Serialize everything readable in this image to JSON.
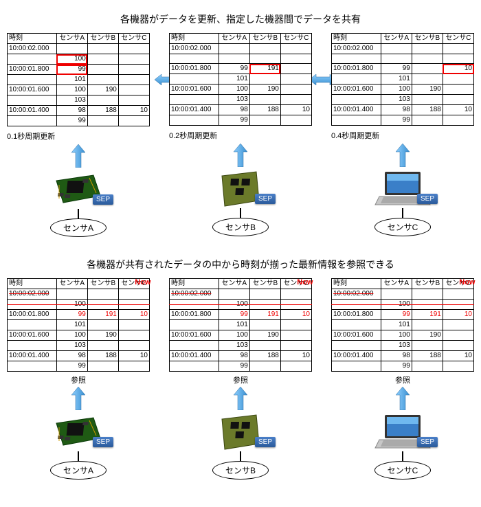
{
  "section1": {
    "title": "各機器がデータを更新、指定した機器間でデータを共有",
    "headers": {
      "time": "時刻",
      "a": "センサA",
      "b": "センサB",
      "c": "センサC"
    },
    "units": [
      {
        "updateCaption": "0.1秒周期更新",
        "highlight": "a",
        "rows": [
          {
            "t": "10:00:02.000",
            "a": "",
            "b": "",
            "c": ""
          },
          {
            "t": "",
            "a": "100",
            "b": "",
            "c": ""
          },
          {
            "t": "10:00:01.800",
            "a": "99",
            "b": "",
            "c": ""
          },
          {
            "t": "",
            "a": "101",
            "b": "",
            "c": ""
          },
          {
            "t": "10:00:01.600",
            "a": "100",
            "b": "190",
            "c": ""
          },
          {
            "t": "",
            "a": "103",
            "b": "",
            "c": ""
          },
          {
            "t": "10:00:01.400",
            "a": "98",
            "b": "188",
            "c": "10"
          },
          {
            "t": "",
            "a": "99",
            "b": "",
            "c": ""
          }
        ],
        "device": "board",
        "sensorLabel": "センサA"
      },
      {
        "updateCaption": "0.2秒周期更新",
        "highlight": "b",
        "rows": [
          {
            "t": "10:00:02.000",
            "a": "",
            "b": "",
            "c": ""
          },
          {
            "t": "",
            "a": "",
            "b": "",
            "c": ""
          },
          {
            "t": "10:00:01.800",
            "a": "99",
            "b": "191",
            "c": ""
          },
          {
            "t": "",
            "a": "101",
            "b": "",
            "c": ""
          },
          {
            "t": "10:00:01.600",
            "a": "100",
            "b": "190",
            "c": ""
          },
          {
            "t": "",
            "a": "103",
            "b": "",
            "c": ""
          },
          {
            "t": "10:00:01.400",
            "a": "98",
            "b": "188",
            "c": "10"
          },
          {
            "t": "",
            "a": "99",
            "b": "",
            "c": ""
          }
        ],
        "device": "panel",
        "sensorLabel": "センサB"
      },
      {
        "updateCaption": "0.4秒周期更新",
        "highlight": "c",
        "rows": [
          {
            "t": "10:00:02.000",
            "a": "",
            "b": "",
            "c": ""
          },
          {
            "t": "",
            "a": "",
            "b": "",
            "c": ""
          },
          {
            "t": "10:00:01.800",
            "a": "99",
            "b": "",
            "c": "10"
          },
          {
            "t": "",
            "a": "101",
            "b": "",
            "c": ""
          },
          {
            "t": "10:00:01.600",
            "a": "100",
            "b": "190",
            "c": ""
          },
          {
            "t": "",
            "a": "103",
            "b": "",
            "c": ""
          },
          {
            "t": "10:00:01.400",
            "a": "98",
            "b": "188",
            "c": "10"
          },
          {
            "t": "",
            "a": "99",
            "b": "",
            "c": ""
          }
        ],
        "device": "laptop",
        "sensorLabel": "センサC"
      }
    ]
  },
  "section2": {
    "title": "各機器が共有されたデータの中から時刻が揃った最新情報を参照できる",
    "nowLabel": "Now",
    "refLabel": "参照",
    "rows": [
      {
        "t": "10:00:02.000",
        "a": "",
        "b": "",
        "c": "",
        "strike": true
      },
      {
        "t": "",
        "a": "100",
        "b": "",
        "c": "",
        "now": true
      },
      {
        "t": "10:00:01.800",
        "a": "99",
        "b": "191",
        "c": "10",
        "red": true
      },
      {
        "t": "",
        "a": "101",
        "b": "",
        "c": ""
      },
      {
        "t": "10:00:01.600",
        "a": "100",
        "b": "190",
        "c": ""
      },
      {
        "t": "",
        "a": "103",
        "b": "",
        "c": ""
      },
      {
        "t": "10:00:01.400",
        "a": "98",
        "b": "188",
        "c": "10"
      },
      {
        "t": "",
        "a": "99",
        "b": "",
        "c": ""
      }
    ],
    "units": [
      {
        "device": "board",
        "sensorLabel": "センサA"
      },
      {
        "device": "panel",
        "sensorLabel": "センサB"
      },
      {
        "device": "laptop",
        "sensorLabel": "センサC"
      }
    ]
  },
  "sep": "SEP",
  "colors": {
    "arrowBlue": "#4fa3e0",
    "boardGreen": "#2a6b1f",
    "panelOlive": "#6b7a2a",
    "red": "#e00000"
  }
}
